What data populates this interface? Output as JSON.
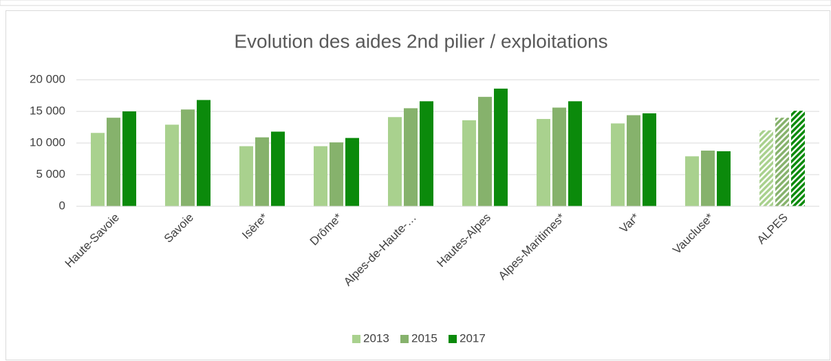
{
  "chart_data": {
    "type": "bar",
    "title": "Evolution des aides 2nd pilier / exploitations",
    "categories": [
      "Haute-Savoie",
      "Savoie",
      "Isère*",
      "Drôme*",
      "Alpes-de-Haute-…",
      "Hautes-Alpes",
      "Alpes-Maritimes*",
      "Var*",
      "Vaucluse*",
      "ALPES"
    ],
    "series": [
      {
        "name": "2013",
        "color": "#a9d18e",
        "values": [
          11600,
          12900,
          9500,
          9500,
          14100,
          13600,
          13800,
          13100,
          7900,
          12000
        ]
      },
      {
        "name": "2015",
        "color": "#86b26c",
        "values": [
          14000,
          15300,
          10900,
          10100,
          15500,
          17300,
          15600,
          14400,
          8800,
          14000
        ]
      },
      {
        "name": "2017",
        "color": "#0b8a0b",
        "values": [
          15000,
          16800,
          11800,
          10800,
          16600,
          18600,
          16600,
          14700,
          8700,
          15100
        ]
      }
    ],
    "ylim": [
      0,
      20000
    ],
    "yticks": [
      0,
      {
        "value": 5000,
        "label": "5 000"
      },
      {
        "value": 10000,
        "label": "10 000"
      },
      {
        "value": 15000,
        "label": "15 000"
      },
      {
        "value": 20000,
        "label": "20 000"
      }
    ],
    "grid": true,
    "legend": "bottom",
    "hatched_last": true
  }
}
